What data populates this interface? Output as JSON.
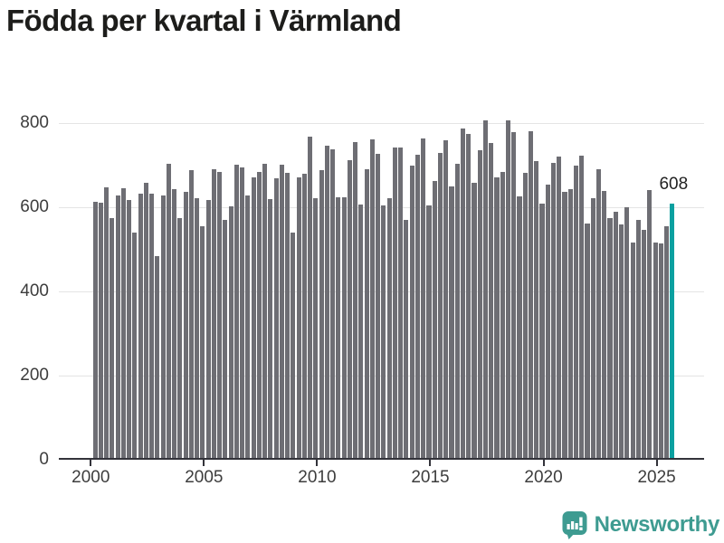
{
  "chart_data": {
    "type": "bar",
    "title": "Födda per kvartal i Värmland",
    "xlabel": "",
    "ylabel": "",
    "unit": "födda per kvartal",
    "x_start": "2000Q1",
    "x_end": "2025Q3",
    "years": [
      {
        "year": 2000,
        "values": [
          612,
          610,
          647,
          573
        ]
      },
      {
        "year": 2001,
        "values": [
          627,
          645,
          617,
          539
        ]
      },
      {
        "year": 2002,
        "values": [
          632,
          657,
          631,
          483
        ]
      },
      {
        "year": 2003,
        "values": [
          627,
          702,
          642,
          573
        ]
      },
      {
        "year": 2004,
        "values": [
          635,
          688,
          621,
          553
        ]
      },
      {
        "year": 2005,
        "values": [
          616,
          690,
          684,
          568
        ]
      },
      {
        "year": 2006,
        "values": [
          601,
          700,
          693,
          627
        ]
      },
      {
        "year": 2007,
        "values": [
          671,
          683,
          703,
          618
        ]
      },
      {
        "year": 2008,
        "values": [
          668,
          701,
          681,
          539
        ]
      },
      {
        "year": 2009,
        "values": [
          670,
          678,
          766,
          620
        ]
      },
      {
        "year": 2010,
        "values": [
          687,
          745,
          737,
          622
        ]
      },
      {
        "year": 2011,
        "values": [
          622,
          712,
          755,
          605
        ]
      },
      {
        "year": 2012,
        "values": [
          689,
          761,
          726,
          604
        ]
      },
      {
        "year": 2013,
        "values": [
          620,
          740,
          740,
          570
        ]
      },
      {
        "year": 2014,
        "values": [
          699,
          724,
          763,
          604
        ]
      },
      {
        "year": 2015,
        "values": [
          661,
          729,
          758,
          649
        ]
      },
      {
        "year": 2016,
        "values": [
          703,
          787,
          773,
          658
        ]
      },
      {
        "year": 2017,
        "values": [
          735,
          806,
          752,
          671
        ]
      },
      {
        "year": 2018,
        "values": [
          682,
          805,
          777,
          625
        ]
      },
      {
        "year": 2019,
        "values": [
          681,
          780,
          708,
          607
        ]
      },
      {
        "year": 2020,
        "values": [
          652,
          704,
          720,
          636
        ]
      },
      {
        "year": 2021,
        "values": [
          643,
          699,
          722,
          561
        ]
      },
      {
        "year": 2022,
        "values": [
          620,
          690,
          638,
          573
        ]
      },
      {
        "year": 2023,
        "values": [
          589,
          559,
          599,
          515
        ]
      },
      {
        "year": 2024,
        "values": [
          568,
          546,
          640,
          515
        ]
      },
      {
        "year": 2025,
        "values": [
          513,
          554,
          608
        ]
      }
    ],
    "highlight": {
      "quarter": "2025Q3",
      "value": 608,
      "label": "608"
    },
    "y_ticks": [
      0,
      200,
      400,
      600,
      800
    ],
    "x_tick_years": [
      "2000",
      "2005",
      "2010",
      "2015",
      "2020",
      "2025"
    ],
    "ylim": [
      0,
      860
    ],
    "grid": "horizontal",
    "legend": "none"
  },
  "colors": {
    "bar": "#6e6e74",
    "highlight": "#0aa0a0",
    "gridline": "#e4e4e4",
    "axis": "#33333a",
    "title_text": "#1d1d1b",
    "tick_text": "#3d3d3d",
    "logo": "#3e9b91"
  },
  "footer": {
    "brand": "Newsworthy",
    "icon": "newsworthy-bar-chart-speech-bubble-icon"
  }
}
